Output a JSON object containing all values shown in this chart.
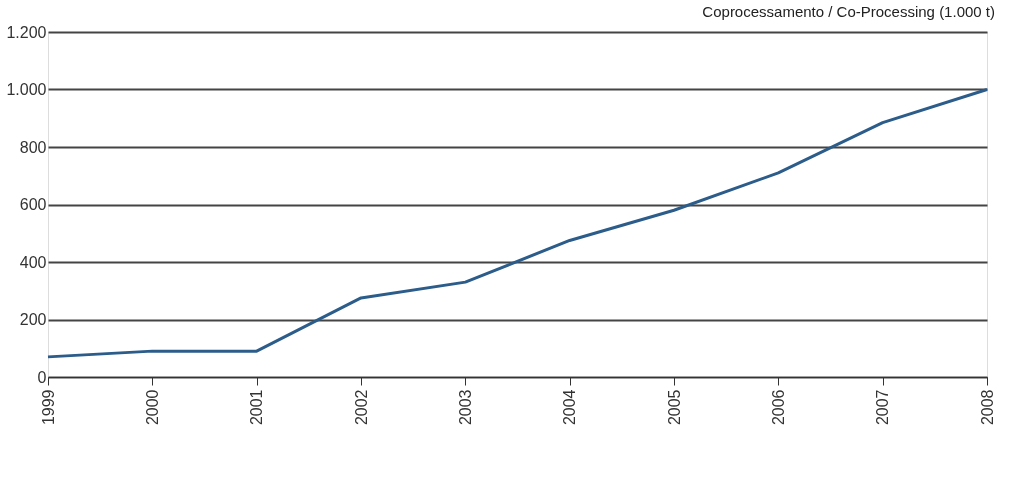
{
  "chart_data": {
    "type": "line",
    "title": "Coprocessamento / Co-Processing (1.000 t)",
    "categories": [
      "1999",
      "2000",
      "2001",
      "2002",
      "2003",
      "2004",
      "2005",
      "2006",
      "2007",
      "2008"
    ],
    "series": [
      {
        "color": "#2b5c8a",
        "values": [
          70,
          90,
          90,
          275,
          330,
          475,
          580,
          710,
          885,
          1000
        ]
      }
    ],
    "ylim": [
      0,
      1200
    ],
    "yticks": [
      0,
      200,
      400,
      600,
      800,
      {
        "value": 1000,
        "label": "1.000"
      },
      {
        "value": 1200,
        "label": "1.200"
      }
    ],
    "grid": "y",
    "legend": false,
    "marker": "none",
    "line_style": "solid"
  }
}
